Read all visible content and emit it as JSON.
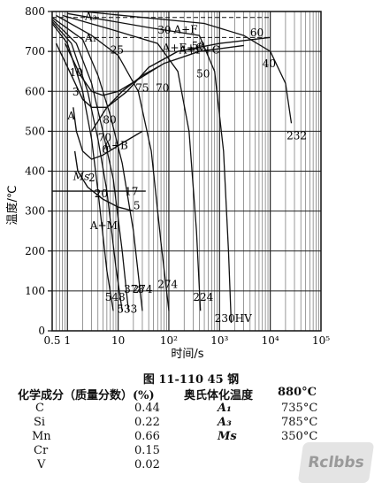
{
  "chart_data": {
    "type": "line",
    "ylabel": "温度/℃",
    "xlabel": "时间/s",
    "x_scale": "log",
    "xlim": [
      0.5,
      100000
    ],
    "ylim": [
      0,
      800
    ],
    "y_ticks": [
      "0",
      "100",
      "200",
      "300",
      "400",
      "500",
      "600",
      "700",
      "800"
    ],
    "x_ticks": [
      "0.5",
      "1",
      "10",
      "10²",
      "10³",
      "10⁴",
      "10⁵"
    ],
    "phase_labels": [
      "A₃",
      "A₁",
      "A",
      "A+B",
      "A+M",
      "Ms",
      "A+F",
      "A+F+C",
      "A+F+C"
    ],
    "transformation_lines": [
      {
        "name": "A3",
        "y": 785
      },
      {
        "name": "A1",
        "y": 735
      },
      {
        "name": "Ms",
        "y": 350
      }
    ],
    "pct_labels": [
      "10",
      "3",
      "25",
      "30",
      "50",
      "50",
      "60",
      "40",
      "75",
      "70",
      "80",
      "70",
      "0",
      "2",
      "20",
      "17",
      "5"
    ],
    "cooling_curves": [
      {
        "hardness": "548",
        "points": [
          [
            0.5,
            770
          ],
          [
            1,
            720
          ],
          [
            2,
            600
          ],
          [
            3,
            480
          ],
          [
            4,
            350
          ],
          [
            6,
            150
          ],
          [
            8,
            50
          ]
        ]
      },
      {
        "hardness": "533",
        "points": [
          [
            0.5,
            775
          ],
          [
            1.2,
            720
          ],
          [
            2.5,
            600
          ],
          [
            4,
            480
          ],
          [
            6,
            350
          ],
          [
            9,
            160
          ],
          [
            12,
            50
          ]
        ]
      },
      {
        "hardness": "378",
        "points": [
          [
            0.5,
            780
          ],
          [
            1.5,
            720
          ],
          [
            3,
            620
          ],
          [
            5,
            500
          ],
          [
            8,
            380
          ],
          [
            12,
            200
          ],
          [
            16,
            50
          ]
        ]
      },
      {
        "hardness": "274",
        "points": [
          [
            0.5,
            785
          ],
          [
            2,
            730
          ],
          [
            4,
            640
          ],
          [
            7,
            540
          ],
          [
            12,
            420
          ],
          [
            20,
            250
          ],
          [
            30,
            50
          ]
        ]
      },
      {
        "hardness": "274",
        "points": [
          [
            0.6,
            790
          ],
          [
            3,
            740
          ],
          [
            10,
            690
          ],
          [
            25,
            600
          ],
          [
            45,
            450
          ],
          [
            70,
            220
          ],
          [
            100,
            50
          ]
        ]
      },
      {
        "hardness": "224",
        "points": [
          [
            0.8,
            790
          ],
          [
            10,
            750
          ],
          [
            60,
            720
          ],
          [
            150,
            650
          ],
          [
            250,
            500
          ],
          [
            350,
            250
          ],
          [
            420,
            50
          ]
        ]
      },
      {
        "hardness": "230HV",
        "points": [
          [
            1,
            795
          ],
          [
            40,
            760
          ],
          [
            400,
            740
          ],
          [
            800,
            650
          ],
          [
            1200,
            450
          ],
          [
            1500,
            200
          ],
          [
            1700,
            20
          ]
        ]
      },
      {
        "hardness": "232",
        "points": [
          [
            2,
            800
          ],
          [
            500,
            770
          ],
          [
            3000,
            740
          ],
          [
            10000,
            700
          ],
          [
            20000,
            620
          ],
          [
            26000,
            520
          ]
        ]
      }
    ],
    "hardness_labels": [
      "548",
      "533",
      "378",
      "274",
      "274",
      "224",
      "230HV",
      "232"
    ]
  },
  "caption": "图 11-110    45 钢",
  "composition": {
    "header_left": "化学成分（质量分数）(%)",
    "header_right": "奥氏体化温度",
    "austenitize_temp": "880°C",
    "elements": [
      {
        "symbol": "C",
        "value": "0.44"
      },
      {
        "symbol": "Si",
        "value": "0.22"
      },
      {
        "symbol": "Mn",
        "value": "0.66"
      },
      {
        "symbol": "Cr",
        "value": "0.15"
      },
      {
        "symbol": "V",
        "value": "0.02"
      }
    ],
    "params": [
      {
        "name": "A₁",
        "value": "735°C"
      },
      {
        "name": "A₃",
        "value": "785°C"
      },
      {
        "name": "Ms",
        "value": "350°C"
      }
    ]
  },
  "watermark": "Rclbbs"
}
